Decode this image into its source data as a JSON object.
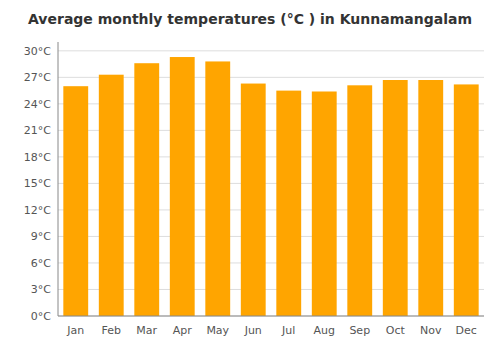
{
  "chart_data": {
    "type": "bar",
    "title": "Average monthly temperatures (°C ) in Kunnamangalam",
    "categories": [
      "Jan",
      "Feb",
      "Mar",
      "Apr",
      "May",
      "Jun",
      "Jul",
      "Aug",
      "Sep",
      "Oct",
      "Nov",
      "Dec"
    ],
    "values": [
      26.0,
      27.3,
      28.6,
      29.3,
      28.8,
      26.3,
      25.5,
      25.4,
      26.1,
      26.7,
      26.7,
      26.2
    ],
    "color": "#FFA500",
    "ylim": [
      0,
      31
    ],
    "yticks": [
      {
        "value": 0,
        "label": "0°C"
      },
      {
        "value": 3,
        "label": "3°C"
      },
      {
        "value": 6,
        "label": "6°C"
      },
      {
        "value": 9,
        "label": "9°C"
      },
      {
        "value": 12,
        "label": "12°C"
      },
      {
        "value": 15,
        "label": "15°C"
      },
      {
        "value": 18,
        "label": "18°C"
      },
      {
        "value": 21,
        "label": "21°C"
      },
      {
        "value": 24,
        "label": "24°C"
      },
      {
        "value": 27,
        "label": "27°C"
      },
      {
        "value": 30,
        "label": "30°C"
      }
    ],
    "grid": true
  }
}
